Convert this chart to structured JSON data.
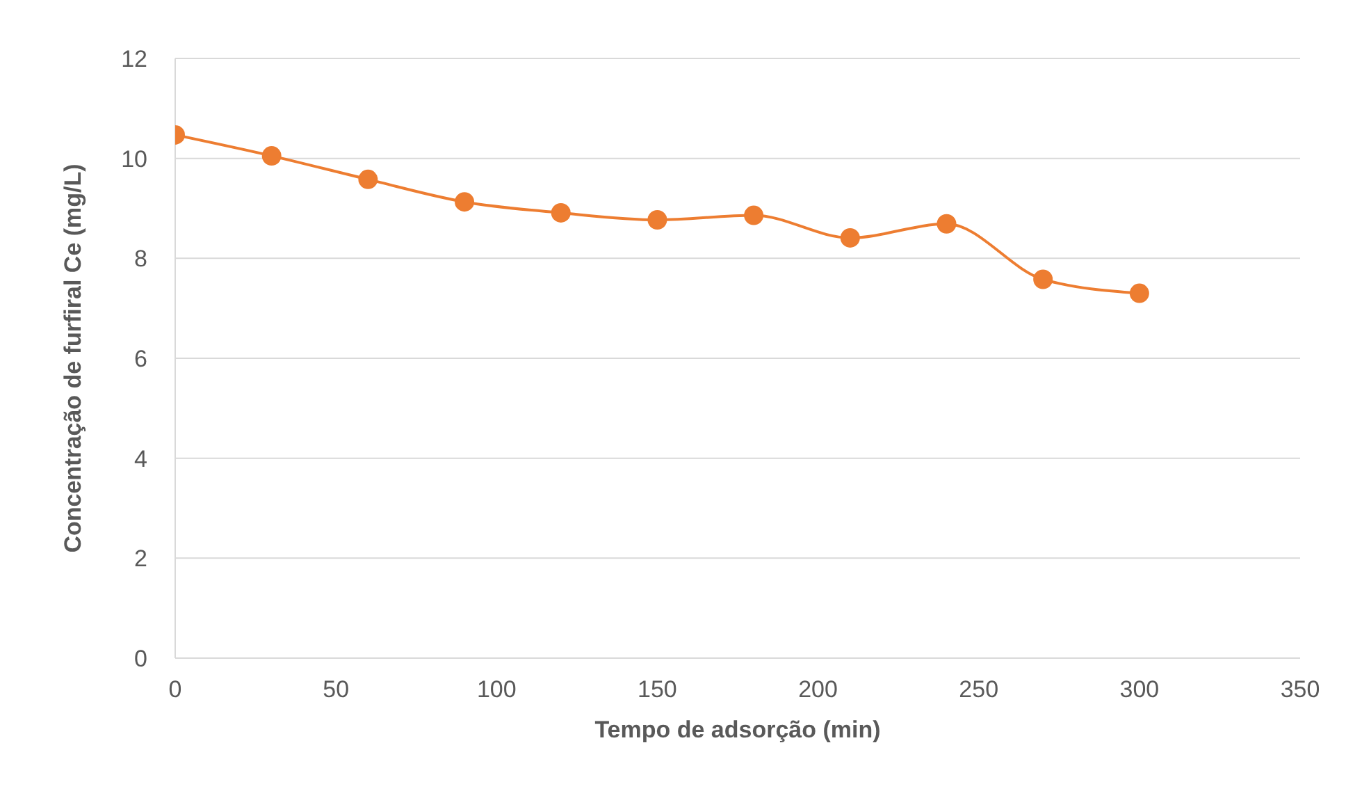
{
  "chart_data": {
    "type": "line",
    "xlabel": "Tempo de adsorção (min)",
    "ylabel": "Concentração de furfiral  Ce (mg/L)",
    "x": [
      0,
      30,
      60,
      90,
      120,
      150,
      180,
      210,
      240,
      270,
      300
    ],
    "series": [
      {
        "color": "#ed7d31",
        "values": [
          10.47,
          10.05,
          9.58,
          9.13,
          8.91,
          8.77,
          8.86,
          8.41,
          8.69,
          7.58,
          7.3
        ]
      }
    ],
    "xlim": [
      0,
      350
    ],
    "xticks": [
      0,
      50,
      100,
      150,
      200,
      250,
      300,
      350
    ],
    "ylim": [
      0,
      12
    ],
    "yticks": [
      0,
      2,
      4,
      6,
      8,
      10,
      12
    ],
    "grid": "y",
    "marker": "circle",
    "line_style": "solid",
    "legend": false
  }
}
